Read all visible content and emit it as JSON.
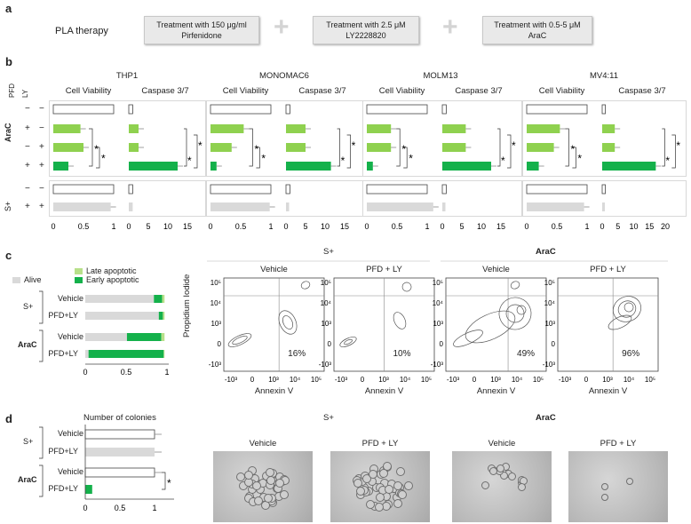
{
  "panels": {
    "a": "a",
    "b": "b",
    "c": "c",
    "d": "d"
  },
  "a": {
    "title": "PLA therapy",
    "box1_line1": "Treatment with 150 μg/ml",
    "box1_line2": "Pirfenidone",
    "box2_line1": "Treatment with 2.5 μM",
    "box2_line2": "LY2228820",
    "box3_line1": "Treatment with 0.5-5 μM",
    "box3_line2": "AraC",
    "plus": "+"
  },
  "b": {
    "row_labels": {
      "pfd": "PFD",
      "ly": "LY",
      "arac": "AraC",
      "splus": "S+"
    },
    "conditions": [
      {
        "pfd": "−",
        "ly": "−"
      },
      {
        "pfd": "+",
        "ly": "−"
      },
      {
        "pfd": "−",
        "ly": "+"
      },
      {
        "pfd": "+",
        "ly": "+"
      },
      {
        "pfd": "−",
        "ly": "−"
      },
      {
        "pfd": "+",
        "ly": "+"
      }
    ],
    "cell_lines": [
      "THP1",
      "MONOMAC6",
      "MOLM13",
      "MV4:11"
    ],
    "sub_headers": [
      "Cell Viability",
      "Caspase 3/7"
    ],
    "star": "*",
    "viability_ticks": [
      "0",
      "0.5",
      "1"
    ],
    "caspase_ticks": [
      [
        "0",
        "5",
        "10",
        "15"
      ],
      [
        "0",
        "5",
        "10",
        "15"
      ],
      [
        "0",
        "5",
        "10",
        "15"
      ],
      [
        "0",
        "5",
        "10",
        "15",
        "20"
      ]
    ]
  },
  "chart_data": [
    {
      "type": "bar",
      "title": "THP1 Cell Viability",
      "categories": [
        "AraC −/−",
        "AraC +/−",
        "AraC −/+",
        "AraC +/+",
        "S+ −/−",
        "S+ +/+"
      ],
      "values": [
        1.0,
        0.45,
        0.5,
        0.25,
        1.0,
        0.95
      ],
      "xlim": [
        0,
        1.2
      ]
    },
    {
      "type": "bar",
      "title": "THP1 Caspase 3/7",
      "categories": [
        "AraC −/−",
        "AraC +/−",
        "AraC −/+",
        "AraC +/+",
        "S+ −/−",
        "S+ +/+"
      ],
      "values": [
        1.0,
        2.5,
        2.5,
        12.5,
        1.0,
        1.0
      ],
      "xlim": [
        0,
        18
      ]
    },
    {
      "type": "bar",
      "title": "MONOMAC6 Cell Viability",
      "categories": [
        "AraC −/−",
        "AraC +/−",
        "AraC −/+",
        "AraC +/+",
        "S+ −/−",
        "S+ +/+"
      ],
      "values": [
        1.0,
        0.55,
        0.35,
        0.1,
        1.0,
        0.98
      ],
      "xlim": [
        0,
        1.2
      ]
    },
    {
      "type": "bar",
      "title": "MONOMAC6 Caspase 3/7",
      "categories": [
        "AraC −/−",
        "AraC +/−",
        "AraC −/+",
        "AraC +/+",
        "S+ −/−",
        "S+ +/+"
      ],
      "values": [
        1.0,
        5.0,
        5.0,
        11.5,
        1.0,
        0.8
      ],
      "xlim": [
        0,
        18
      ]
    },
    {
      "type": "bar",
      "title": "MOLM13 Cell Viability",
      "categories": [
        "AraC −/−",
        "AraC +/−",
        "AraC −/+",
        "AraC +/+",
        "S+ −/−",
        "S+ +/+"
      ],
      "values": [
        1.0,
        0.4,
        0.4,
        0.1,
        1.0,
        1.1
      ],
      "xlim": [
        0,
        1.2
      ]
    },
    {
      "type": "bar",
      "title": "MOLM13 Caspase 3/7",
      "categories": [
        "AraC −/−",
        "AraC +/−",
        "AraC −/+",
        "AraC +/+",
        "S+ −/−",
        "S+ +/+"
      ],
      "values": [
        1.0,
        6.0,
        6.0,
        12.5,
        1.0,
        0.8
      ],
      "xlim": [
        0,
        18
      ]
    },
    {
      "type": "bar",
      "title": "MV4:11 Cell Viability",
      "categories": [
        "AraC −/−",
        "AraC +/−",
        "AraC −/+",
        "AraC +/+",
        "S+ −/−",
        "S+ +/+"
      ],
      "values": [
        1.0,
        0.55,
        0.45,
        0.2,
        1.0,
        0.95
      ],
      "xlim": [
        0,
        1.2
      ]
    },
    {
      "type": "bar",
      "title": "MV4:11 Caspase 3/7",
      "categories": [
        "AraC −/−",
        "AraC +/−",
        "AraC −/+",
        "AraC +/+",
        "S+ −/−",
        "S+ +/+"
      ],
      "values": [
        1.0,
        4.0,
        4.0,
        17.0,
        1.0,
        0.8
      ],
      "xlim": [
        0,
        24
      ]
    },
    {
      "type": "bar",
      "title": "Apoptosis stacked",
      "categories": [
        "S+ Vehicle",
        "S+ PFD+LY",
        "AraC Vehicle",
        "AraC PFD+LY"
      ],
      "series": [
        {
          "name": "Alive",
          "values": [
            0.84,
            0.9,
            0.51,
            0.04
          ]
        },
        {
          "name": "Early apoptotic",
          "values": [
            0.1,
            0.05,
            0.42,
            0.92
          ]
        },
        {
          "name": "Late apoptotic",
          "values": [
            0.03,
            0.02,
            0.04,
            0.01
          ]
        }
      ],
      "xlim": [
        0,
        1
      ]
    },
    {
      "type": "bar",
      "title": "Number of colonies",
      "categories": [
        "S+ Vehicle",
        "S+ PFD+LY",
        "AraC Vehicle",
        "AraC PFD+LY"
      ],
      "values": [
        1.0,
        1.0,
        1.0,
        0.1
      ],
      "xlim": [
        0,
        1.3
      ]
    }
  ],
  "c": {
    "legend": {
      "alive": "Alive",
      "late": "Late apoptotic",
      "early": "Early apoptotic"
    },
    "rows": [
      "Vehicle",
      "PFD+LY",
      "Vehicle",
      "PFD+LY"
    ],
    "groups": [
      "S+",
      "AraC"
    ],
    "ticks": [
      "0",
      "0.5",
      "1"
    ],
    "flow_group_labels": [
      "S+",
      "AraC"
    ],
    "flow_titles": [
      "Vehicle",
      "PFD + LY",
      "Vehicle",
      "PFD + LY"
    ],
    "flow_percents": [
      "16%",
      "10%",
      "49%",
      "96%"
    ],
    "y_axis": "Propidium Iodide",
    "x_axis": "Annexin V",
    "flow_x_ticks": [
      "-10³",
      "0",
      "10³",
      "10⁴",
      "10⁵"
    ],
    "flow_y_ticks": [
      "10⁵",
      "10⁴",
      "10³",
      "0",
      "-10³"
    ]
  },
  "d": {
    "title": "Number of colonies",
    "rows": [
      "Vehicle",
      "PFD+LY",
      "Vehicle",
      "PFD+LY"
    ],
    "groups": [
      "S+",
      "AraC"
    ],
    "ticks": [
      "0",
      "0.5",
      "1"
    ],
    "star": "*",
    "image_group_labels": [
      "S+",
      "AraC"
    ],
    "image_titles": [
      "Vehicle",
      "PFD + LY",
      "Vehicle",
      "PFD + LY"
    ]
  },
  "colors": {
    "green": "#14b14b",
    "lightgreen": "#8fd14f",
    "grey": "#d9d9d9",
    "palegreen": "#b8e08a"
  }
}
